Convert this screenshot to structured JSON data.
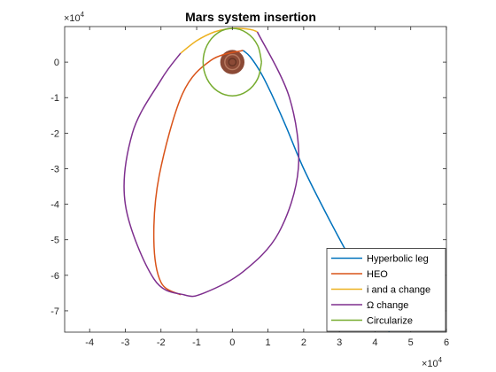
{
  "chart_data": {
    "type": "line",
    "title": "Mars system insertion",
    "xlabel": "",
    "ylabel": "",
    "xlim": [
      -4.7,
      6.0
    ],
    "ylim": [
      -7.6,
      1.0
    ],
    "x_scale_exponent": {
      "base": "×10",
      "power": "4"
    },
    "y_scale_exponent": {
      "base": "×10",
      "power": "4"
    },
    "x_ticks": [
      -4,
      -3,
      -2,
      -1,
      0,
      1,
      2,
      3,
      4,
      5,
      6
    ],
    "y_ticks": [
      0,
      -1,
      -2,
      -3,
      -4,
      -5,
      -6,
      -7
    ],
    "grid": false,
    "legend_position": "bottom-right",
    "planet": {
      "name": "Mars",
      "center": [
        0,
        0
      ],
      "radius": 0.34,
      "color": "#8b4a36"
    },
    "series": [
      {
        "name": "Hyperbolic leg",
        "color": "#0072bd",
        "x": [
          4.4,
          3.5,
          2.7,
          2.0,
          1.5,
          1.1,
          0.8,
          0.5,
          0.3
        ],
        "y": [
          -7.6,
          -5.9,
          -4.4,
          -3.0,
          -1.8,
          -0.9,
          -0.3,
          0.15,
          0.33
        ]
      },
      {
        "name": "HEO",
        "color": "#d95319",
        "x": [
          0.3,
          -0.6,
          -1.4,
          -2.05,
          -2.2,
          -2.0,
          -1.45
        ],
        "y": [
          0.33,
          0.05,
          -0.9,
          -3.2,
          -5.0,
          -6.2,
          -6.55
        ]
      },
      {
        "name": "i and a change",
        "color": "#edb120",
        "x": [
          -1.45,
          -1.0,
          -0.5,
          0.0,
          0.5,
          0.7
        ],
        "y": [
          0.25,
          0.6,
          0.85,
          0.95,
          0.92,
          0.85
        ]
      },
      {
        "name": "Ω change",
        "color": "#7e2f8e",
        "x": [
          0.7,
          1.6,
          1.85,
          1.3,
          0.3,
          -0.8,
          -1.35,
          -2.2,
          -3.0,
          -2.8,
          -2.0,
          -1.45
        ],
        "y": [
          0.85,
          -1.0,
          -3.0,
          -4.8,
          -5.9,
          -6.5,
          -6.55,
          -6.1,
          -4.0,
          -2.0,
          -0.5,
          0.25
        ]
      },
      {
        "name": "Circularize",
        "color": "#77ac30",
        "x": [
          0.82,
          0.71,
          0.41,
          0.0,
          -0.41,
          -0.71,
          -0.82,
          -0.71,
          -0.41,
          0.0,
          0.41,
          0.71,
          0.82
        ],
        "y": [
          0.0,
          0.47,
          0.82,
          0.95,
          0.82,
          0.47,
          0.0,
          -0.47,
          -0.82,
          -0.95,
          -0.82,
          -0.47,
          0.0
        ]
      }
    ]
  }
}
